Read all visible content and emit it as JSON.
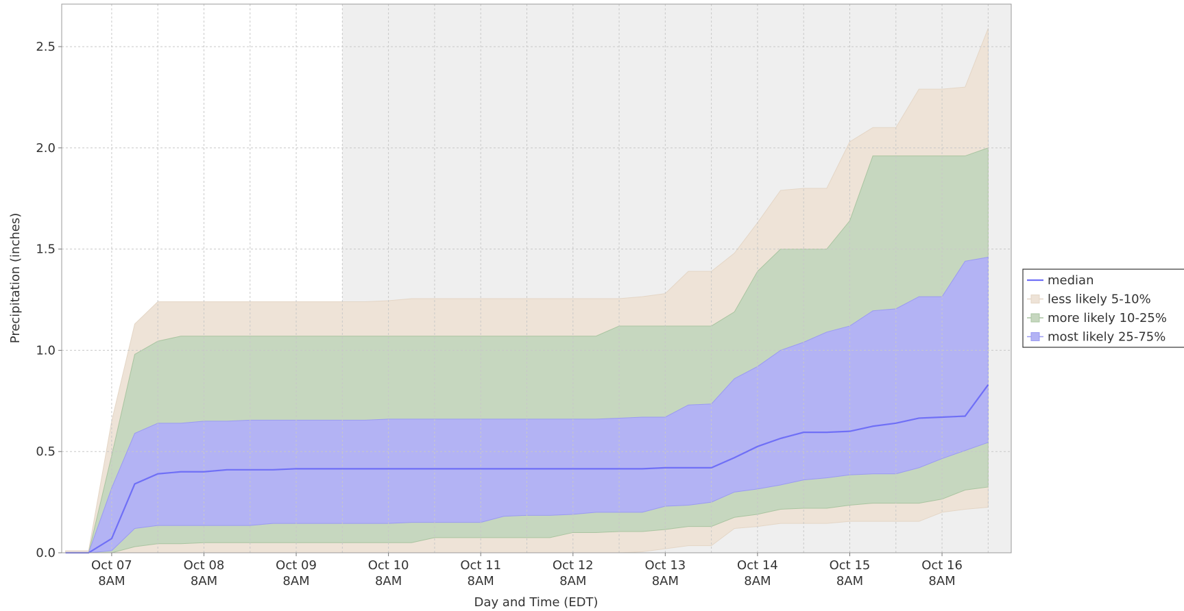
{
  "chart_data": {
    "type": "band",
    "x_label": "Day and Time (EDT)",
    "y_label": "Precipitation (inches)",
    "x": [
      "Oct 06 20:00",
      "Oct 07 02:00",
      "Oct 07 08:00",
      "Oct 07 14:00",
      "Oct 07 20:00",
      "Oct 08 02:00",
      "Oct 08 08:00",
      "Oct 08 14:00",
      "Oct 08 20:00",
      "Oct 09 02:00",
      "Oct 09 08:00",
      "Oct 09 14:00",
      "Oct 09 20:00",
      "Oct 10 02:00",
      "Oct 10 08:00",
      "Oct 10 14:00",
      "Oct 10 20:00",
      "Oct 11 02:00",
      "Oct 11 08:00",
      "Oct 11 14:00",
      "Oct 11 20:00",
      "Oct 12 02:00",
      "Oct 12 08:00",
      "Oct 12 14:00",
      "Oct 12 20:00",
      "Oct 13 02:00",
      "Oct 13 08:00",
      "Oct 13 14:00",
      "Oct 13 20:00",
      "Oct 14 02:00",
      "Oct 14 08:00",
      "Oct 14 14:00",
      "Oct 14 20:00",
      "Oct 15 02:00",
      "Oct 15 08:00",
      "Oct 15 14:00",
      "Oct 15 20:00",
      "Oct 16 02:00",
      "Oct 16 08:00",
      "Oct 16 14:00",
      "Oct 16 20:00"
    ],
    "bands": [
      {
        "name": "less likely 5-10%",
        "color": "#eee3d7",
        "edge": "#e4d6c6",
        "lower": [
          0,
          0,
          0,
          0,
          0,
          0,
          0,
          0,
          0,
          0,
          0,
          0,
          0,
          0,
          0,
          0,
          0,
          0,
          0,
          0,
          0,
          0,
          0,
          0,
          0,
          0.005,
          0.02,
          0.035,
          0.035,
          0.12,
          0.13,
          0.145,
          0.145,
          0.145,
          0.155,
          0.155,
          0.155,
          0.155,
          0.2,
          0.215,
          0.225
        ],
        "upper": [
          0.01,
          0.01,
          0.65,
          1.13,
          1.24,
          1.24,
          1.24,
          1.24,
          1.24,
          1.24,
          1.24,
          1.24,
          1.24,
          1.24,
          1.245,
          1.255,
          1.255,
          1.255,
          1.255,
          1.255,
          1.255,
          1.255,
          1.255,
          1.255,
          1.255,
          1.265,
          1.28,
          1.39,
          1.39,
          1.48,
          1.63,
          1.79,
          1.8,
          1.8,
          2.03,
          2.1,
          2.1,
          2.29,
          2.29,
          2.3,
          2.59
        ]
      },
      {
        "name": "more likely 10-25%",
        "color": "#c6d7bf",
        "edge": "#a9c4a0",
        "lower": [
          0,
          0,
          0,
          0.03,
          0.045,
          0.045,
          0.05,
          0.05,
          0.05,
          0.05,
          0.05,
          0.05,
          0.05,
          0.05,
          0.05,
          0.05,
          0.075,
          0.075,
          0.075,
          0.075,
          0.075,
          0.075,
          0.1,
          0.1,
          0.105,
          0.105,
          0.115,
          0.13,
          0.13,
          0.175,
          0.19,
          0.215,
          0.22,
          0.22,
          0.235,
          0.245,
          0.245,
          0.245,
          0.265,
          0.31,
          0.325
        ],
        "upper": [
          0,
          0,
          0.48,
          0.98,
          1.045,
          1.07,
          1.07,
          1.07,
          1.07,
          1.07,
          1.07,
          1.07,
          1.07,
          1.07,
          1.07,
          1.07,
          1.07,
          1.07,
          1.07,
          1.07,
          1.07,
          1.07,
          1.07,
          1.07,
          1.12,
          1.12,
          1.12,
          1.12,
          1.12,
          1.19,
          1.39,
          1.5,
          1.5,
          1.5,
          1.64,
          1.96,
          1.96,
          1.96,
          1.96,
          1.96,
          2.0
        ]
      },
      {
        "name": "most likely 25-75%",
        "color": "#b3b3f4",
        "edge": "#9a9af2",
        "lower": [
          0,
          0,
          0.01,
          0.12,
          0.135,
          0.135,
          0.135,
          0.135,
          0.135,
          0.145,
          0.145,
          0.145,
          0.145,
          0.145,
          0.145,
          0.15,
          0.15,
          0.15,
          0.15,
          0.18,
          0.185,
          0.185,
          0.19,
          0.2,
          0.2,
          0.2,
          0.23,
          0.235,
          0.25,
          0.3,
          0.315,
          0.335,
          0.36,
          0.37,
          0.385,
          0.39,
          0.39,
          0.42,
          0.465,
          0.505,
          0.545
        ],
        "upper": [
          0,
          0,
          0.32,
          0.59,
          0.64,
          0.64,
          0.65,
          0.65,
          0.655,
          0.655,
          0.655,
          0.655,
          0.655,
          0.655,
          0.66,
          0.66,
          0.66,
          0.66,
          0.66,
          0.66,
          0.66,
          0.66,
          0.66,
          0.66,
          0.665,
          0.67,
          0.67,
          0.73,
          0.735,
          0.86,
          0.92,
          1.0,
          1.04,
          1.09,
          1.12,
          1.195,
          1.205,
          1.265,
          1.265,
          1.44,
          1.46
        ]
      }
    ],
    "series": [
      {
        "name": "median",
        "color": "#6f6ff6",
        "values": [
          0,
          0,
          0.07,
          0.34,
          0.39,
          0.4,
          0.4,
          0.41,
          0.41,
          0.41,
          0.415,
          0.415,
          0.415,
          0.415,
          0.415,
          0.415,
          0.415,
          0.415,
          0.415,
          0.415,
          0.415,
          0.415,
          0.415,
          0.415,
          0.415,
          0.415,
          0.42,
          0.42,
          0.42,
          0.47,
          0.525,
          0.565,
          0.595,
          0.595,
          0.6,
          0.625,
          0.64,
          0.665,
          0.67,
          0.675,
          0.83
        ]
      }
    ],
    "xlim": [
      "Oct 06 19:00",
      "Oct 17 02:00"
    ],
    "xticks": [
      {
        "value": "Oct 07 08:00",
        "label": "Oct 07 8AM"
      },
      {
        "value": "Oct 08 08:00",
        "label": "Oct 08 8AM"
      },
      {
        "value": "Oct 09 08:00",
        "label": "Oct 09 8AM"
      },
      {
        "value": "Oct 10 08:00",
        "label": "Oct 10 8AM"
      },
      {
        "value": "Oct 11 08:00",
        "label": "Oct 11 8AM"
      },
      {
        "value": "Oct 12 08:00",
        "label": "Oct 12 8AM"
      },
      {
        "value": "Oct 13 08:00",
        "label": "Oct 13 8AM"
      },
      {
        "value": "Oct 14 08:00",
        "label": "Oct 14 8AM"
      },
      {
        "value": "Oct 15 08:00",
        "label": "Oct 15 8AM"
      },
      {
        "value": "Oct 16 08:00",
        "label": "Oct 16 8AM"
      }
    ],
    "x_minor_grid": [
      "Oct 07 20:00",
      "Oct 08 20:00",
      "Oct 09 20:00",
      "Oct 10 20:00",
      "Oct 11 20:00",
      "Oct 12 20:00",
      "Oct 13 20:00",
      "Oct 14 20:00",
      "Oct 15 20:00",
      "Oct 16 20:00"
    ],
    "ylim": [
      0,
      2.71
    ],
    "yticks": [
      {
        "value": 0,
        "label": "0.0"
      },
      0.5,
      {
        "value": 1,
        "label": "1.0"
      },
      1.5,
      {
        "value": 2,
        "label": "2.0"
      },
      2.5
    ],
    "grid": true,
    "shaded_from": "Oct 09 20:00",
    "shade_color": "#efefef",
    "legend": "right"
  }
}
